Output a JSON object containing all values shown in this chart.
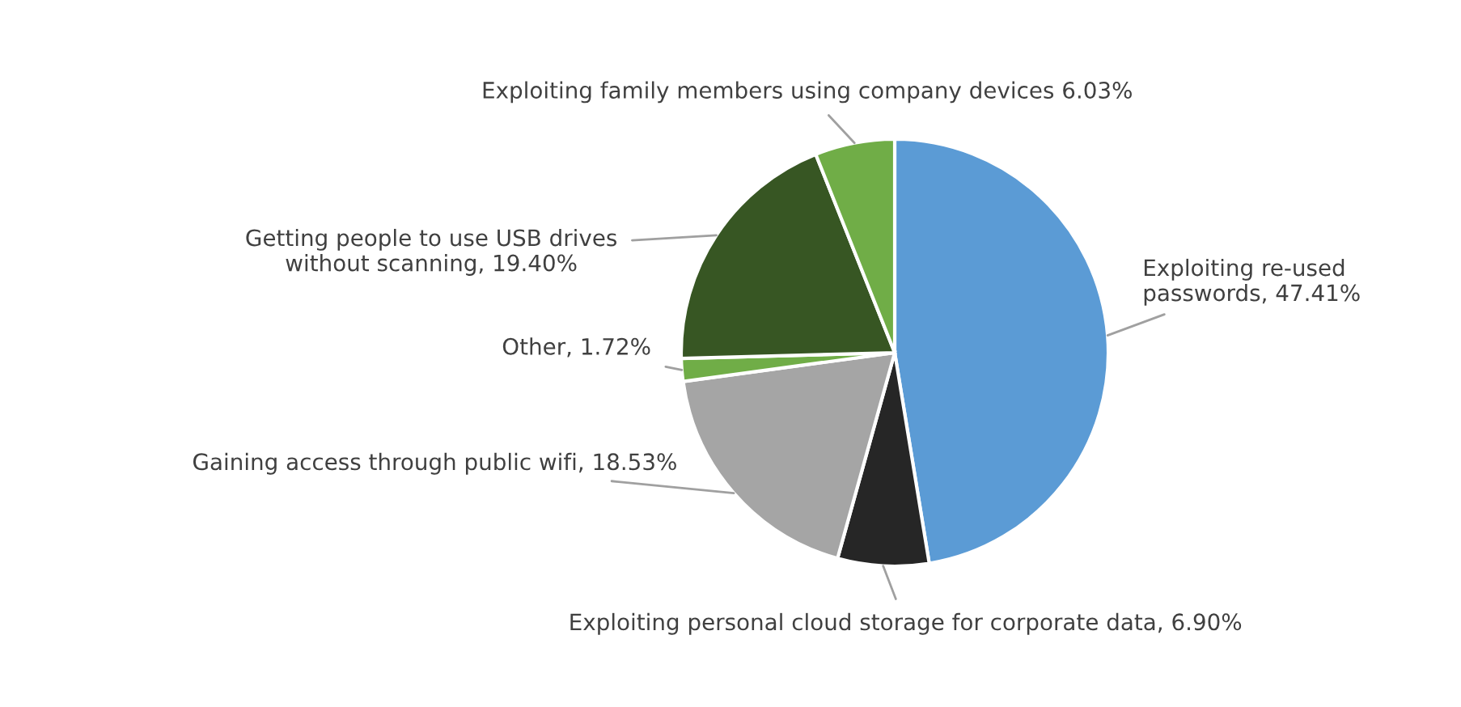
{
  "chart_data": {
    "type": "pie",
    "categories": [
      "Exploiting re-used\npasswords",
      "Exploiting personal cloud storage for corporate data",
      "Gaining access through public wifi",
      "Other",
      "Getting people to use USB drives\nwithout scanning",
      "Exploiting family members using company devices"
    ],
    "values": [
      47.41,
      6.9,
      18.53,
      1.72,
      19.4,
      6.03
    ],
    "value_labels": [
      "47.41%",
      "6.90%",
      "18.53%",
      "1.72%",
      "19.40%",
      "6.03%"
    ],
    "colors": [
      "#5b9bd5",
      "#262626",
      "#a5a5a5",
      "#70ad47",
      "#375623",
      "#70ad47"
    ],
    "legend": false
  }
}
